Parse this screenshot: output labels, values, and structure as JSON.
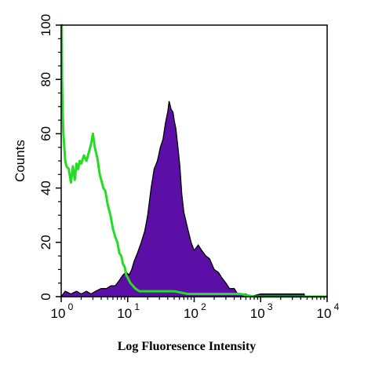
{
  "chart_data": {
    "type": "area",
    "xlabel": "Log Fluoresence Intensity",
    "ylabel": "Counts",
    "x_scale": "log",
    "xlim": [
      1,
      10000
    ],
    "ylim": [
      0,
      100
    ],
    "x_ticks": [
      {
        "base": "10",
        "exp": "0",
        "value": 1
      },
      {
        "base": "10",
        "exp": "1",
        "value": 10
      },
      {
        "base": "10",
        "exp": "2",
        "value": 100
      },
      {
        "base": "10",
        "exp": "3",
        "value": 1000
      },
      {
        "base": "10",
        "exp": "4",
        "value": 10000
      }
    ],
    "y_ticks": [
      "0",
      "20",
      "40",
      "60",
      "80",
      "100"
    ],
    "series": [
      {
        "kind": "filled",
        "color": "#5b0fa6",
        "points": [
          [
            1.0,
            0
          ],
          [
            1.15,
            2
          ],
          [
            1.4,
            1
          ],
          [
            1.7,
            2
          ],
          [
            2.0,
            1
          ],
          [
            2.4,
            2
          ],
          [
            2.8,
            1
          ],
          [
            3.3,
            2
          ],
          [
            4.0,
            3
          ],
          [
            4.8,
            3
          ],
          [
            5.6,
            4
          ],
          [
            6.5,
            4
          ],
          [
            7.5,
            6
          ],
          [
            8.5,
            8
          ],
          [
            9.5,
            9
          ],
          [
            10.5,
            8
          ],
          [
            11.5,
            10
          ],
          [
            12.5,
            13
          ],
          [
            14.0,
            16
          ],
          [
            16.0,
            20
          ],
          [
            18.0,
            24
          ],
          [
            20.0,
            30
          ],
          [
            22.5,
            40
          ],
          [
            25.0,
            47
          ],
          [
            28.0,
            50
          ],
          [
            31.0,
            55
          ],
          [
            34.0,
            58
          ],
          [
            37.0,
            64
          ],
          [
            40.0,
            68
          ],
          [
            42.0,
            72
          ],
          [
            45.0,
            69
          ],
          [
            48.0,
            68
          ],
          [
            50.0,
            65
          ],
          [
            53.0,
            62
          ],
          [
            57.0,
            55
          ],
          [
            61.0,
            48
          ],
          [
            65.0,
            38
          ],
          [
            70.0,
            31
          ],
          [
            75.0,
            28
          ],
          [
            80.0,
            25
          ],
          [
            90.0,
            20
          ],
          [
            100.0,
            17
          ],
          [
            115.0,
            19
          ],
          [
            130.0,
            17
          ],
          [
            150.0,
            15
          ],
          [
            170.0,
            14
          ],
          [
            200.0,
            10
          ],
          [
            230.0,
            9
          ],
          [
            260.0,
            7
          ],
          [
            300.0,
            5
          ],
          [
            340.0,
            3
          ],
          [
            400.0,
            3
          ],
          [
            450.0,
            1
          ],
          [
            500.0,
            1
          ],
          [
            600.0,
            1
          ],
          [
            700.0,
            0
          ],
          [
            1000.0,
            1
          ],
          [
            1500.0,
            1
          ],
          [
            2500.0,
            1
          ],
          [
            4500.0,
            1
          ],
          [
            4600.0,
            0
          ]
        ]
      },
      {
        "kind": "line",
        "color": "#22dd22",
        "points": [
          [
            1.0,
            100
          ],
          [
            1.02,
            100
          ],
          [
            1.03,
            80
          ],
          [
            1.05,
            68
          ],
          [
            1.08,
            60
          ],
          [
            1.1,
            57
          ],
          [
            1.15,
            50
          ],
          [
            1.2,
            48
          ],
          [
            1.3,
            47
          ],
          [
            1.4,
            42
          ],
          [
            1.5,
            48
          ],
          [
            1.6,
            43
          ],
          [
            1.7,
            49
          ],
          [
            1.8,
            47
          ],
          [
            1.9,
            50
          ],
          [
            2.0,
            49
          ],
          [
            2.2,
            52
          ],
          [
            2.4,
            50
          ],
          [
            2.6,
            53
          ],
          [
            2.8,
            56
          ],
          [
            3.0,
            60
          ],
          [
            3.2,
            55
          ],
          [
            3.5,
            51
          ],
          [
            3.8,
            45
          ],
          [
            4.0,
            43
          ],
          [
            4.3,
            40
          ],
          [
            4.6,
            39
          ],
          [
            5.0,
            34
          ],
          [
            5.5,
            30
          ],
          [
            6.0,
            25
          ],
          [
            6.5,
            22
          ],
          [
            7.0,
            20
          ],
          [
            7.5,
            16
          ],
          [
            8.0,
            15
          ],
          [
            8.5,
            12
          ],
          [
            9.0,
            11
          ],
          [
            9.5,
            8
          ],
          [
            10.0,
            7
          ],
          [
            11.0,
            5
          ],
          [
            12.0,
            4
          ],
          [
            13.0,
            3
          ],
          [
            15.0,
            2
          ],
          [
            20.0,
            2
          ],
          [
            30.0,
            2
          ],
          [
            50.0,
            2
          ],
          [
            80.0,
            1
          ],
          [
            150.0,
            1
          ],
          [
            300.0,
            1
          ],
          [
            500.0,
            1
          ],
          [
            800.0,
            0
          ],
          [
            1500.0,
            0
          ],
          [
            4000.0,
            0
          ],
          [
            10000.0,
            0
          ]
        ]
      }
    ]
  }
}
